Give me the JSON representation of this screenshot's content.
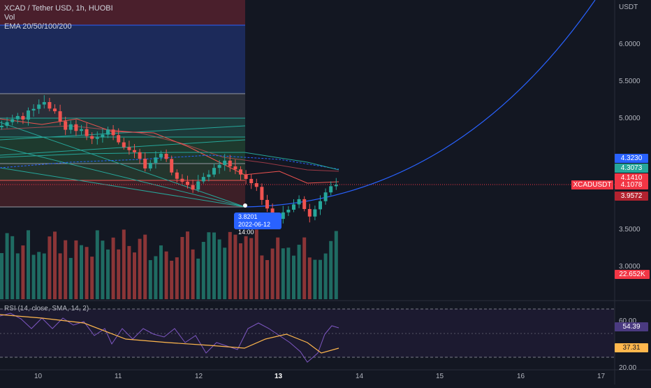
{
  "legend": {
    "symbol_line": "XCAD / Tether USD, 1h, HUOBI",
    "vol_label": "Vol",
    "ema_label": "EMA 20/50/100/200"
  },
  "rsi_legend": "RSI (14, close, SMA, 14, 2)",
  "price_axis": {
    "currency": "USDT",
    "ticks": [
      "6.0000",
      "5.5000",
      "5.0000",
      "3.5000",
      "3.0000"
    ]
  },
  "rsi_axis": {
    "ticks": [
      "60.00",
      "20.00"
    ]
  },
  "time_axis": {
    "ticks": [
      "10",
      "11",
      "12",
      "13",
      "14",
      "15",
      "16",
      "17"
    ]
  },
  "price_tags": [
    {
      "label": "4.3230",
      "color": "#2962ff"
    },
    {
      "label": "4.3073",
      "color": "#26a69a"
    },
    {
      "label": "4.1410",
      "color": "#f23645"
    },
    {
      "label": "4.1078",
      "color": "#f23645"
    },
    {
      "label": "3.9572",
      "color": "#b2222f"
    }
  ],
  "symbol_tag": "XCADUSDT",
  "volume_tag": {
    "label": "22.652K",
    "color": "#f23645"
  },
  "rsi_tags": [
    {
      "label": "54.39",
      "color": "#7e57c2"
    },
    {
      "label": "37.31",
      "color": "#ffb74d"
    }
  ],
  "tooltip": {
    "value": "3.8201",
    "date": "2022-06-12 14:00"
  },
  "colors": {
    "background": "#131722",
    "up": "#26a69a",
    "down": "#ef5350",
    "arc": "#2962ff"
  }
}
